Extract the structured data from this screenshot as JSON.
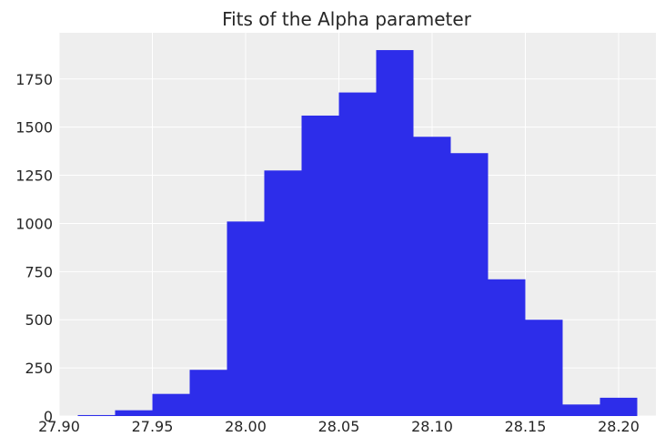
{
  "chart_data": {
    "type": "bar",
    "title": "Fits of the Alpha parameter",
    "xlabel": "",
    "ylabel": "",
    "xlim": [
      27.9,
      28.22
    ],
    "ylim": [
      0,
      1990
    ],
    "grid": true,
    "bar_color": "#2d2dea",
    "plot_background": "#eeeeee",
    "grid_color": "#ffffff",
    "bin_edges": [
      27.91,
      27.93,
      27.95,
      27.97,
      27.99,
      28.01,
      28.03,
      28.05,
      28.07,
      28.09,
      28.11,
      28.13,
      28.15,
      28.17,
      28.19,
      28.21
    ],
    "values": [
      5,
      30,
      115,
      240,
      1010,
      1275,
      1560,
      1680,
      1900,
      1450,
      1365,
      710,
      500,
      60,
      95
    ],
    "xticks": [
      27.9,
      27.95,
      28.0,
      28.05,
      28.1,
      28.15,
      28.2
    ],
    "xtick_labels": [
      "27.90",
      "27.95",
      "28.00",
      "28.05",
      "28.10",
      "28.15",
      "28.20"
    ],
    "yticks": [
      0,
      250,
      500,
      750,
      1000,
      1250,
      1500,
      1750
    ],
    "ytick_labels": [
      "0",
      "250",
      "500",
      "750",
      "1000",
      "1250",
      "1500",
      "1750"
    ]
  }
}
